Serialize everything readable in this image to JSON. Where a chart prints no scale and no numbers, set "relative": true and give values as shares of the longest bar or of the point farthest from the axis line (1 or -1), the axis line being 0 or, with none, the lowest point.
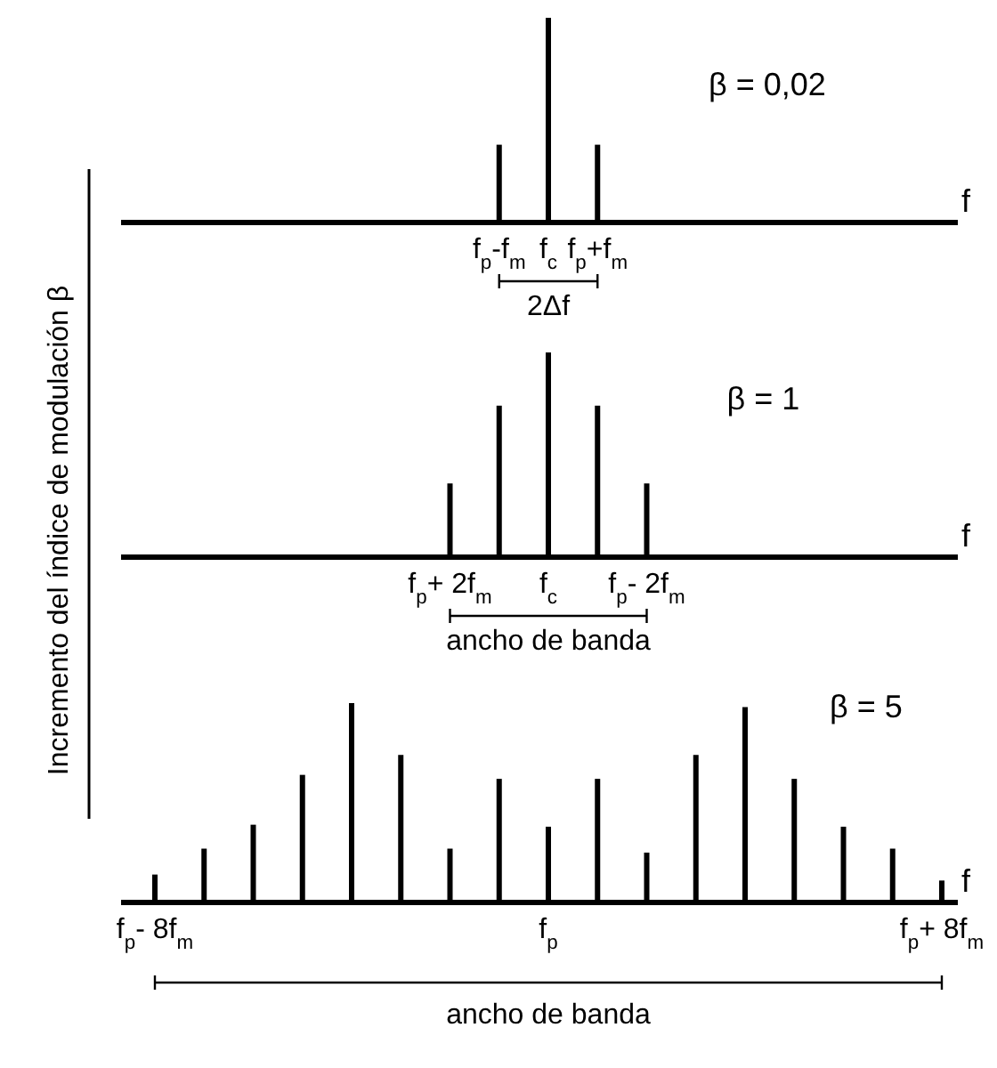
{
  "chart_data": [
    {
      "type": "bar",
      "relative": true,
      "xlabel": "f",
      "color": "#000000",
      "categories": [
        null,
        null,
        null,
        null,
        null,
        null,
        null,
        "f$_{p}$-f$_{m}$",
        "f$_{c}$",
        "f$_{p}$+f$_{m}$",
        null,
        null,
        null,
        null,
        null,
        null,
        null
      ],
      "values": [
        null,
        null,
        null,
        null,
        null,
        null,
        null,
        0.38,
        1,
        0.38,
        null,
        null,
        null,
        null,
        null,
        null,
        null
      ],
      "annotations": [
        "β = 0,02",
        "2Δf"
      ]
    },
    {
      "type": "bar",
      "relative": true,
      "xlabel": "f",
      "ylabel": "Incremento del índice de modulación β",
      "color": "#000000",
      "categories": [
        null,
        null,
        null,
        null,
        null,
        null,
        "f$_{p}$+ 2f$_{m}$",
        null,
        "f$_{c}$",
        null,
        "f$_{p}$- 2f$_{m}$",
        null,
        null,
        null,
        null,
        null,
        null
      ],
      "values": [
        null,
        null,
        null,
        null,
        null,
        null,
        0.36,
        0.74,
        1,
        0.74,
        0.36,
        null,
        null,
        null,
        null,
        null,
        null
      ],
      "annotations": [
        "β = 1",
        "ancho de banda"
      ]
    },
    {
      "type": "bar",
      "relative": true,
      "xlabel": "f",
      "color": "#000000",
      "categories": [
        "f$_{p}$- 8f$_{m}$",
        null,
        null,
        null,
        null,
        null,
        null,
        null,
        "f$_{p}$",
        null,
        null,
        null,
        null,
        null,
        null,
        null,
        "f$_{p}$+ 8f$_{m}$"
      ],
      "values": [
        0.14,
        0.27,
        0.39,
        0.64,
        1,
        0.74,
        0.27,
        0.62,
        0.38,
        0.62,
        0.25,
        0.74,
        0.98,
        0.62,
        0.38,
        0.27,
        0.11
      ],
      "annotations": [
        "β = 5",
        "ancho de banda"
      ]
    }
  ]
}
